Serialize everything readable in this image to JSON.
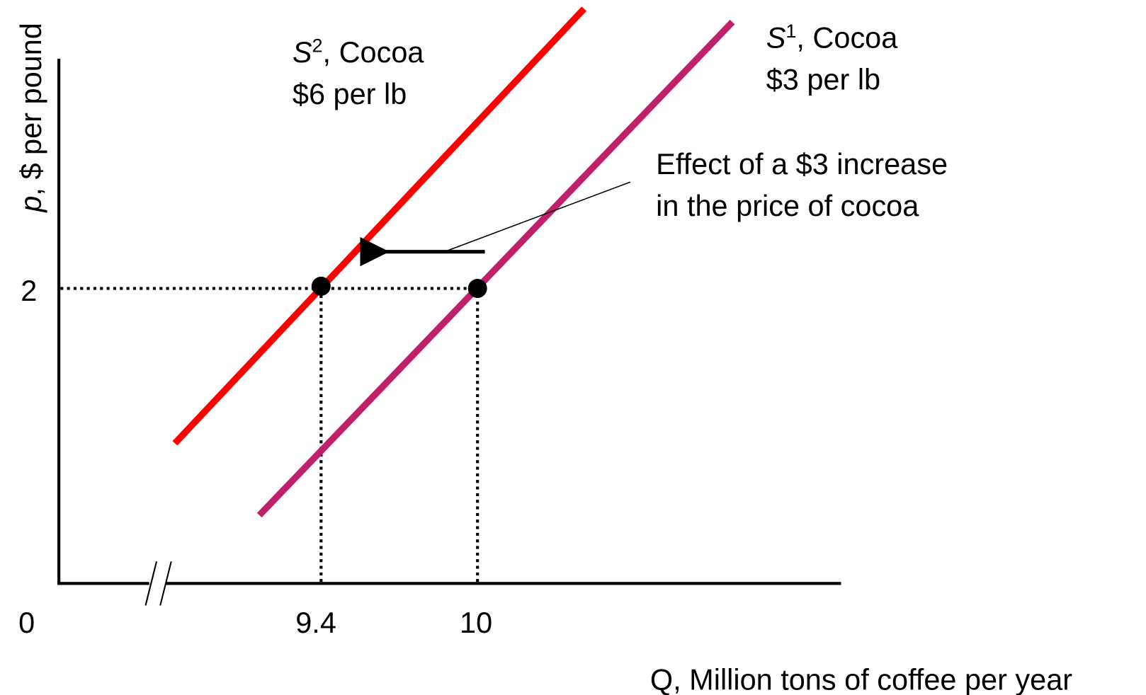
{
  "axes": {
    "y_label": {
      "symbol": "p",
      "text": ", $ per pound"
    },
    "x_label": {
      "symbol": "Q",
      "text": ", Million tons of coffee per year"
    },
    "origin": "0",
    "y_ticks": [
      "2"
    ],
    "x_ticks": [
      "9.4",
      "10"
    ]
  },
  "curves": [
    {
      "symbol": "S",
      "index": "2",
      "name": ", Cocoa",
      "price": "$6 per lb"
    },
    {
      "symbol": "S",
      "index": "1",
      "name": ", Cocoa",
      "price": "$3 per lb"
    }
  ],
  "annotation": [
    "Effect of a $3 increase",
    "in the price of cocoa"
  ]
}
